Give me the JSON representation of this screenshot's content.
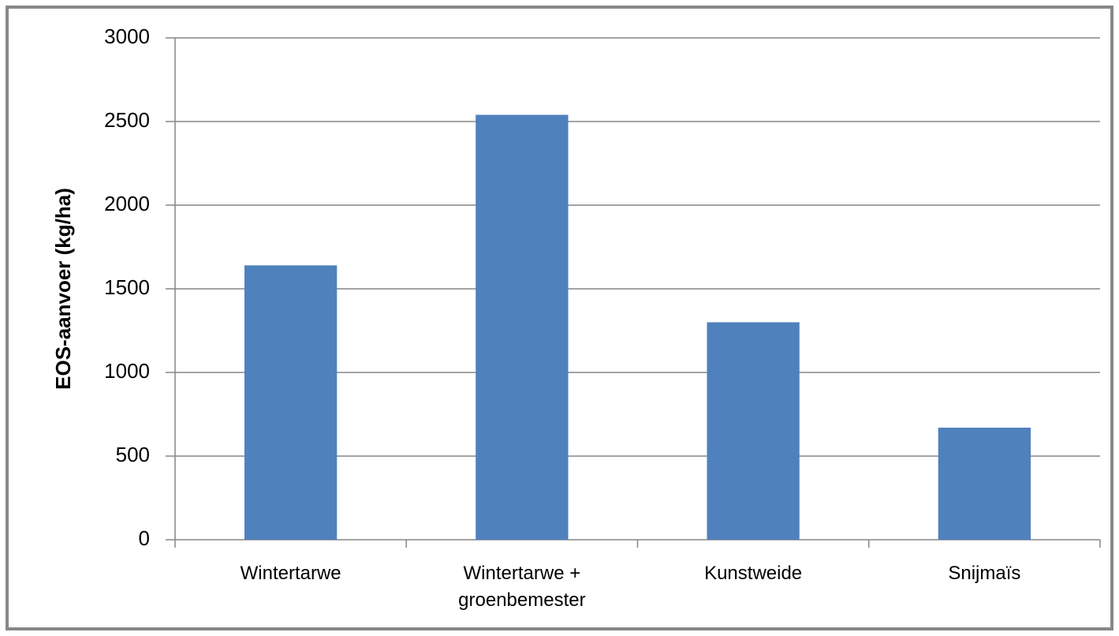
{
  "chart_data": {
    "type": "bar",
    "y_label": "EOS-aanvoer (kg/ha)",
    "categories": [
      "Wintertarwe",
      "Wintertarwe + groenbemester",
      "Kunstweide",
      "Snijmaïs"
    ],
    "values": [
      1640,
      2540,
      1300,
      670
    ],
    "color": "#4f81bd",
    "ylim": [
      0,
      3000
    ],
    "yticks": [
      0,
      500,
      1000,
      1500,
      2000,
      2500,
      3000
    ],
    "grid": true
  }
}
